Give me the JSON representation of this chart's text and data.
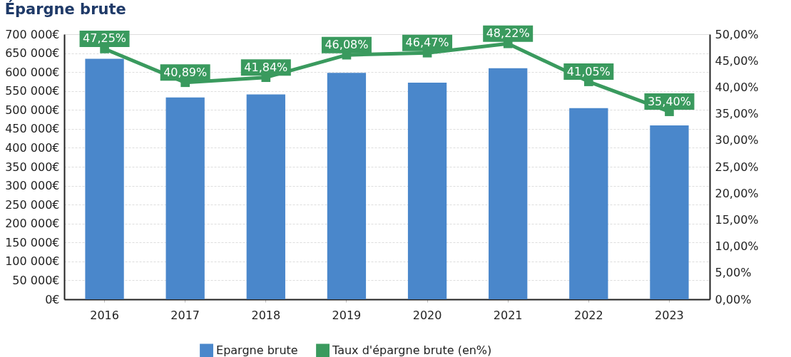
{
  "chart_data": {
    "type": "bar",
    "title": "Épargne brute",
    "categories": [
      "2016",
      "2017",
      "2018",
      "2019",
      "2020",
      "2021",
      "2022",
      "2023"
    ],
    "series": [
      {
        "name": "Epargne brute",
        "color": "#4a87cb",
        "values": [
          635000,
          533000,
          541000,
          598000,
          572000,
          610000,
          505000,
          459000
        ]
      },
      {
        "name": "Taux d'épargne brute (en%)",
        "type": "line",
        "axis": "y2",
        "color": "#3a9a5e",
        "values": [
          47.25,
          40.89,
          41.84,
          46.08,
          46.47,
          48.22,
          41.05,
          35.4
        ],
        "value_labels": [
          "47,25%",
          "40,89%",
          "41,84%",
          "46,08%",
          "46,47%",
          "48,22%",
          "41,05%",
          "35,40%"
        ]
      }
    ],
    "ylim": [
      0,
      700000
    ],
    "yticks": [
      {
        "value": 0,
        "label": "0€"
      },
      {
        "value": 50000,
        "label": "50 000€"
      },
      {
        "value": 100000,
        "label": "100 000€"
      },
      {
        "value": 150000,
        "label": "150 000€"
      },
      {
        "value": 200000,
        "label": "200 000€"
      },
      {
        "value": 250000,
        "label": "250 000€"
      },
      {
        "value": 300000,
        "label": "300 000€"
      },
      {
        "value": 350000,
        "label": "350 000€"
      },
      {
        "value": 400000,
        "label": "400 000€"
      },
      {
        "value": 450000,
        "label": "450 000€"
      },
      {
        "value": 500000,
        "label": "500 000€"
      },
      {
        "value": 550000,
        "label": "550 000€"
      },
      {
        "value": 600000,
        "label": "600 000€"
      },
      {
        "value": 650000,
        "label": "650 000€"
      },
      {
        "value": 700000,
        "label": "700 000€"
      }
    ],
    "y2lim": [
      0,
      50
    ],
    "y2ticks": [
      {
        "value": 0,
        "label": "0,00%"
      },
      {
        "value": 5,
        "label": "5,00%"
      },
      {
        "value": 10,
        "label": "10,00%"
      },
      {
        "value": 15,
        "label": "15,00%"
      },
      {
        "value": 20,
        "label": "20,00%"
      },
      {
        "value": 25,
        "label": "25,00%"
      },
      {
        "value": 30,
        "label": "30,00%"
      },
      {
        "value": 35,
        "label": "35,00%"
      },
      {
        "value": 40,
        "label": "40,00%"
      },
      {
        "value": 45,
        "label": "45,00%"
      },
      {
        "value": 50,
        "label": "50,00%"
      }
    ],
    "grid": "y",
    "legend": "bottom",
    "marker": "square",
    "line_style": "solid"
  }
}
